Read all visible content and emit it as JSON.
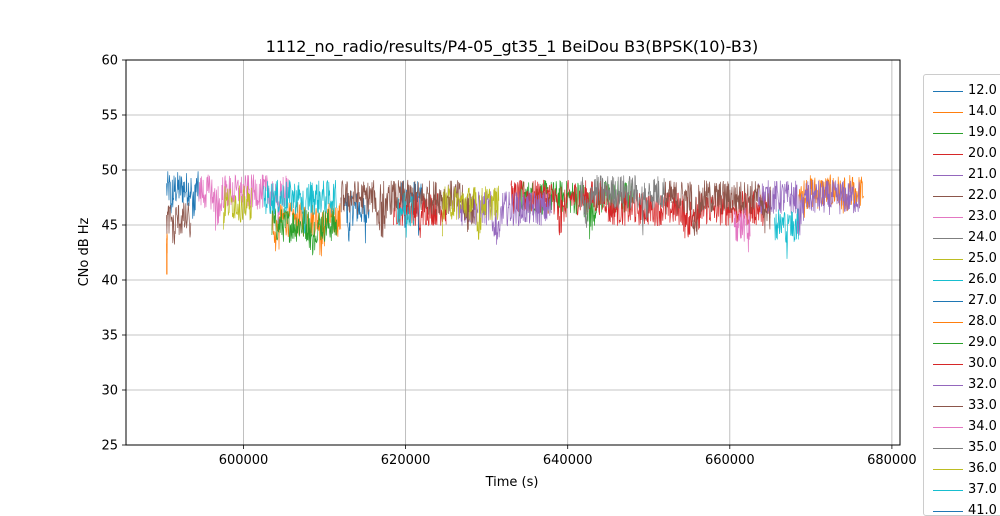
{
  "chart_data": {
    "type": "line",
    "title": "1112_no_radio/results/P4-05_gt35_1 BeiDou B3(BPSK(10)-B3)",
    "xlabel": "Time (s)",
    "ylabel": "CNo dB Hz",
    "xlim": [
      585500,
      681000
    ],
    "ylim": [
      25,
      60
    ],
    "xticks": [
      600000,
      620000,
      640000,
      660000,
      680000
    ],
    "yticks": [
      25,
      30,
      35,
      40,
      45,
      50,
      55,
      60
    ],
    "grid": true,
    "legend_position": "right, outside",
    "series": [
      {
        "name": "12.0",
        "color": "#1f77b4",
        "segments": [
          [
            590500,
            594500,
            48.3
          ],
          [
            612500,
            615500,
            46.5
          ],
          [
            619500,
            622000,
            47.5
          ]
        ]
      },
      {
        "name": "14.0",
        "color": "#ff7f0e",
        "segments": [
          [
            590500,
            590600,
            43.0
          ],
          [
            603500,
            612000,
            45.5
          ],
          [
            668500,
            676500,
            48.0
          ]
        ]
      },
      {
        "name": "19.0",
        "color": "#2ca02c",
        "segments": [
          [
            603500,
            611500,
            45.0
          ],
          [
            634000,
            648000,
            47.5
          ]
        ]
      },
      {
        "name": "20.0",
        "color": "#d62728",
        "segments": [
          [
            618500,
            625000,
            46.5
          ],
          [
            633000,
            645000,
            47.5
          ],
          [
            645000,
            665000,
            46.5
          ]
        ]
      },
      {
        "name": "21.0",
        "color": "#9467bd",
        "segments": [
          [
            626500,
            638000,
            46.5
          ],
          [
            663500,
            676000,
            47.5
          ]
        ]
      },
      {
        "name": "22.0",
        "color": "#8c564b",
        "segments": [
          [
            590500,
            593500,
            45.5
          ],
          [
            612000,
            628500,
            47.5
          ],
          [
            652000,
            665000,
            47.5
          ]
        ]
      },
      {
        "name": "23.0",
        "color": "#e377c2",
        "segments": [
          [
            594500,
            605500,
            48.0
          ],
          [
            660500,
            662500,
            45.0
          ]
        ]
      },
      {
        "name": "24.0",
        "color": "#7f7f7f",
        "segments": [
          [
            641500,
            652000,
            48.0
          ]
        ]
      },
      {
        "name": "25.0",
        "color": "#bcbd22",
        "segments": [
          [
            597500,
            601000,
            47.0
          ],
          [
            624500,
            631500,
            47.0
          ]
        ]
      },
      {
        "name": "26.0",
        "color": "#17becf",
        "segments": [
          [
            602500,
            611500,
            47.5
          ],
          [
            619000,
            621000,
            46.5
          ],
          [
            665500,
            668500,
            45.0
          ]
        ]
      },
      {
        "name": "27.0",
        "color": "#1f77b4",
        "segments": []
      },
      {
        "name": "28.0",
        "color": "#ff7f0e",
        "segments": []
      },
      {
        "name": "29.0",
        "color": "#2ca02c",
        "segments": []
      },
      {
        "name": "30.0",
        "color": "#d62728",
        "segments": []
      },
      {
        "name": "32.0",
        "color": "#9467bd",
        "segments": []
      },
      {
        "name": "33.0",
        "color": "#8c564b",
        "segments": []
      },
      {
        "name": "34.0",
        "color": "#e377c2",
        "segments": []
      },
      {
        "name": "35.0",
        "color": "#7f7f7f",
        "segments": []
      },
      {
        "name": "36.0",
        "color": "#bcbd22",
        "segments": []
      },
      {
        "name": "37.0",
        "color": "#17becf",
        "segments": []
      },
      {
        "name": "41.0",
        "color": "#1f77b4",
        "segments": []
      }
    ]
  }
}
